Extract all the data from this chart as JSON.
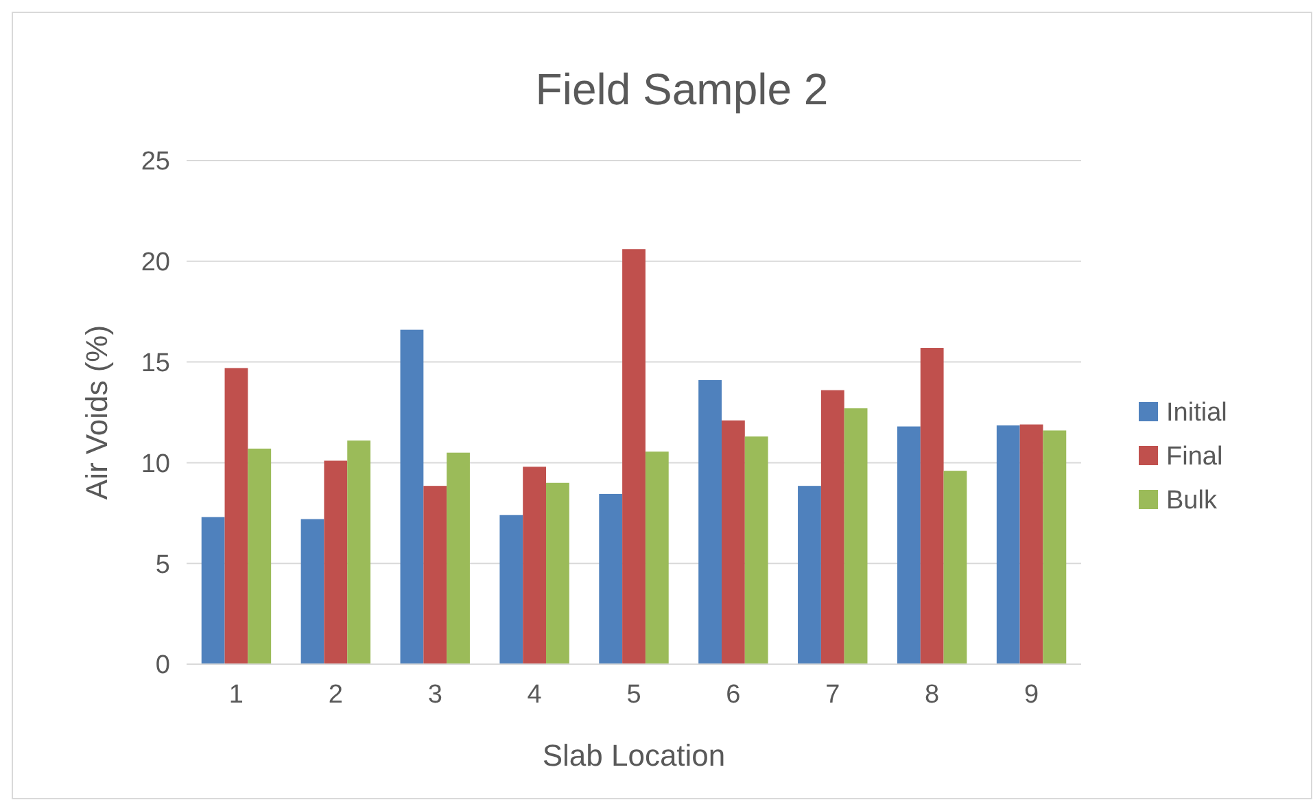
{
  "chart_data": {
    "type": "bar",
    "title": "Field Sample 2",
    "xlabel": "Slab Location",
    "ylabel": "Air Voids (%)",
    "categories": [
      "1",
      "2",
      "3",
      "4",
      "5",
      "6",
      "7",
      "8",
      "9"
    ],
    "series": [
      {
        "name": "Initial",
        "color": "#4f81bd",
        "values": [
          7.3,
          7.2,
          16.6,
          7.4,
          8.45,
          14.1,
          8.85,
          11.8,
          11.85
        ]
      },
      {
        "name": "Final",
        "color": "#c0504d",
        "values": [
          14.7,
          10.1,
          8.85,
          9.8,
          20.6,
          12.1,
          13.6,
          15.7,
          11.9
        ]
      },
      {
        "name": "Bulk",
        "color": "#9bbb59",
        "values": [
          10.7,
          11.1,
          10.5,
          9.0,
          10.55,
          11.3,
          12.7,
          9.6,
          11.6
        ]
      }
    ],
    "ylim": [
      0,
      25
    ],
    "yticks": [
      0,
      5,
      10,
      15,
      20,
      25
    ],
    "grid": "y",
    "legend": "right"
  }
}
